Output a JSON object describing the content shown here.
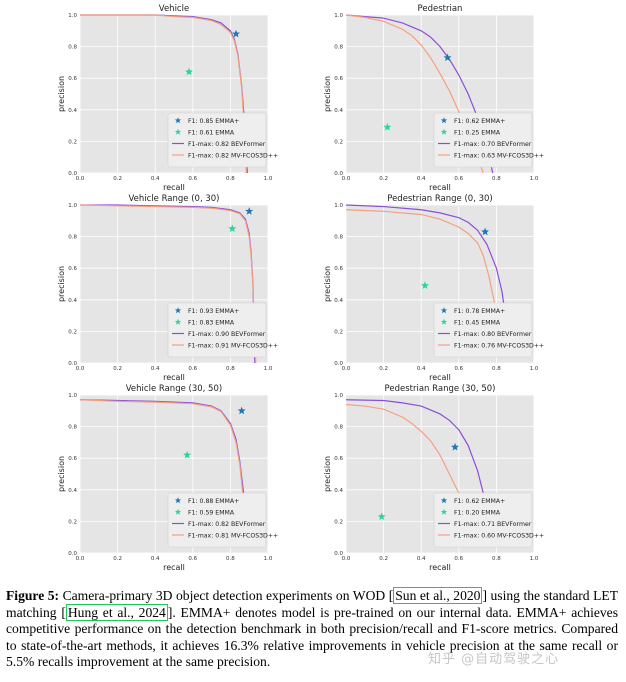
{
  "caption": {
    "fig_label": "Figure 5:",
    "seg1": " Camera-primary 3D object detection experiments on WOD [",
    "cite1": "Sun et al., 2020",
    "seg2": "] using the standard LET matching [",
    "cite2": "Hung et al., 2024",
    "seg3": "]. EMMA+ denotes model is pre-trained on our internal data. EMMA+ achieves competitive performance on the detection benchmark in both precision/recall and F1-score metrics. Compared to state-of-the-art methods, it achieves 16.3% relative improvements in vehicle precision at the same recall or 5.5% recalls improvement at the same precision."
  },
  "watermark": "知乎 @自动驾驶之心",
  "colors": {
    "panel_bg": "#e5e5e5",
    "grid": "#ffffff",
    "emma_plus": "#1f77b4",
    "emma": "#2ad3a0",
    "bevformer": "#8a4fd8",
    "mvfcos": "#f4a080"
  },
  "chart_data": [
    {
      "type": "line",
      "title": "Vehicle",
      "xlabel": "recall",
      "ylabel": "precision",
      "xlim": [
        0,
        1
      ],
      "ylim": [
        0,
        1
      ],
      "grid": true,
      "legend": "bottom-right",
      "xticks": [
        "0.0",
        "0.2",
        "0.4",
        "0.6",
        "0.8",
        "1.0"
      ],
      "yticks": [
        "0.0",
        "0.2",
        "0.4",
        "0.6",
        "0.8",
        "1.0"
      ],
      "points": [
        {
          "name": "F1: 0.85 EMMA+",
          "x": 0.83,
          "y": 0.88,
          "color": "emma_plus"
        },
        {
          "name": "F1: 0.61 EMMA",
          "x": 0.58,
          "y": 0.64,
          "color": "emma"
        }
      ],
      "series": [
        {
          "name": "F1-max: 0.82 BEVFormer",
          "color": "bevformer",
          "x": [
            0,
            0.2,
            0.4,
            0.5,
            0.6,
            0.7,
            0.75,
            0.8,
            0.82,
            0.84,
            0.86,
            0.88,
            0.89
          ],
          "y": [
            1,
            1,
            1,
            0.995,
            0.99,
            0.97,
            0.95,
            0.9,
            0.85,
            0.75,
            0.55,
            0.25,
            0
          ]
        },
        {
          "name": "F1-max: 0.82 MV-FCOS3D++",
          "color": "mvfcos",
          "x": [
            0,
            0.2,
            0.4,
            0.5,
            0.6,
            0.7,
            0.75,
            0.8,
            0.82,
            0.84,
            0.86,
            0.875,
            0.885
          ],
          "y": [
            1,
            1,
            1,
            0.99,
            0.985,
            0.965,
            0.94,
            0.89,
            0.84,
            0.74,
            0.54,
            0.25,
            0
          ]
        }
      ]
    },
    {
      "type": "line",
      "title": "Pedestrian",
      "xlabel": "recall",
      "ylabel": "precision",
      "xlim": [
        0,
        1
      ],
      "ylim": [
        0,
        1
      ],
      "grid": true,
      "legend": "bottom-right",
      "xticks": [
        "0.0",
        "0.2",
        "0.4",
        "0.6",
        "0.8",
        "1.0"
      ],
      "yticks": [
        "0.0",
        "0.2",
        "0.4",
        "0.6",
        "0.8",
        "1.0"
      ],
      "points": [
        {
          "name": "F1: 0.62 EMMA+",
          "x": 0.54,
          "y": 0.73,
          "color": "emma_plus"
        },
        {
          "name": "F1: 0.25 EMMA",
          "x": 0.22,
          "y": 0.29,
          "color": "emma"
        }
      ],
      "series": [
        {
          "name": "F1-max: 0.70 BEVFormer",
          "color": "bevformer",
          "x": [
            0,
            0.1,
            0.2,
            0.3,
            0.4,
            0.45,
            0.5,
            0.55,
            0.6,
            0.65,
            0.7,
            0.75,
            0.78
          ],
          "y": [
            1,
            0.99,
            0.98,
            0.95,
            0.9,
            0.86,
            0.8,
            0.72,
            0.62,
            0.5,
            0.35,
            0.18,
            0
          ]
        },
        {
          "name": "F1-max: 0.63 MV-FCOS3D++",
          "color": "mvfcos",
          "x": [
            0,
            0.1,
            0.2,
            0.3,
            0.35,
            0.4,
            0.45,
            0.5,
            0.55,
            0.6,
            0.65,
            0.7,
            0.73
          ],
          "y": [
            1,
            0.985,
            0.96,
            0.91,
            0.87,
            0.81,
            0.73,
            0.63,
            0.52,
            0.39,
            0.25,
            0.1,
            0
          ]
        }
      ]
    },
    {
      "type": "line",
      "title": "Vehicle Range (0, 30)",
      "xlabel": "recall",
      "ylabel": "precision",
      "xlim": [
        0,
        1
      ],
      "ylim": [
        0,
        1
      ],
      "grid": true,
      "legend": "bottom-right",
      "xticks": [
        "0.0",
        "0.2",
        "0.4",
        "0.6",
        "0.8",
        "1.0"
      ],
      "yticks": [
        "0.0",
        "0.2",
        "0.4",
        "0.6",
        "0.8",
        "1.0"
      ],
      "points": [
        {
          "name": "F1: 0.93 EMMA+",
          "x": 0.9,
          "y": 0.96,
          "color": "emma_plus"
        },
        {
          "name": "F1: 0.83 EMMA",
          "x": 0.81,
          "y": 0.85,
          "color": "emma"
        }
      ],
      "series": [
        {
          "name": "F1-max: 0.90 BEVFormer",
          "color": "bevformer",
          "x": [
            0,
            0.2,
            0.4,
            0.6,
            0.7,
            0.8,
            0.85,
            0.88,
            0.9,
            0.91,
            0.92,
            0.93
          ],
          "y": [
            1,
            1,
            0.995,
            0.99,
            0.985,
            0.97,
            0.95,
            0.91,
            0.82,
            0.7,
            0.5,
            0
          ]
        },
        {
          "name": "F1-max: 0.91 MV-FCOS3D++",
          "color": "mvfcos",
          "x": [
            0,
            0.2,
            0.4,
            0.6,
            0.7,
            0.8,
            0.85,
            0.88,
            0.9,
            0.91,
            0.92,
            0.935
          ],
          "y": [
            1,
            0.995,
            0.99,
            0.985,
            0.98,
            0.965,
            0.945,
            0.9,
            0.8,
            0.68,
            0.5,
            0
          ]
        }
      ]
    },
    {
      "type": "line",
      "title": "Pedestrian Range (0, 30)",
      "xlabel": "recall",
      "ylabel": "precision",
      "xlim": [
        0,
        1
      ],
      "ylim": [
        0,
        1
      ],
      "grid": true,
      "legend": "bottom-right",
      "xticks": [
        "0.0",
        "0.2",
        "0.4",
        "0.6",
        "0.8",
        "1.0"
      ],
      "yticks": [
        "0.0",
        "0.2",
        "0.4",
        "0.6",
        "0.8",
        "1.0"
      ],
      "points": [
        {
          "name": "F1: 0.78 EMMA+",
          "x": 0.74,
          "y": 0.83,
          "color": "emma_plus"
        },
        {
          "name": "F1: 0.45 EMMA",
          "x": 0.42,
          "y": 0.49,
          "color": "emma"
        }
      ],
      "series": [
        {
          "name": "F1-max: 0.80 BEVFormer",
          "color": "bevformer",
          "x": [
            0,
            0.2,
            0.4,
            0.5,
            0.6,
            0.65,
            0.7,
            0.75,
            0.8,
            0.83,
            0.86
          ],
          "y": [
            1,
            0.99,
            0.97,
            0.95,
            0.92,
            0.89,
            0.84,
            0.75,
            0.6,
            0.45,
            0.2
          ]
        },
        {
          "name": "F1-max: 0.76 MV-FCOS3D++",
          "color": "mvfcos",
          "x": [
            0,
            0.2,
            0.4,
            0.5,
            0.6,
            0.65,
            0.7,
            0.73,
            0.76,
            0.79,
            0.82
          ],
          "y": [
            0.97,
            0.96,
            0.94,
            0.91,
            0.86,
            0.82,
            0.76,
            0.68,
            0.55,
            0.38,
            0.2
          ]
        }
      ]
    },
    {
      "type": "line",
      "title": "Vehicle Range (30, 50)",
      "xlabel": "recall",
      "ylabel": "precision",
      "xlim": [
        0,
        1
      ],
      "ylim": [
        0,
        1
      ],
      "grid": true,
      "legend": "bottom-right",
      "xticks": [
        "0.0",
        "0.2",
        "0.4",
        "0.6",
        "0.8",
        "1.0"
      ],
      "yticks": [
        "0.0",
        "0.2",
        "0.4",
        "0.6",
        "0.8",
        "1.0"
      ],
      "points": [
        {
          "name": "F1: 0.88 EMMA+",
          "x": 0.86,
          "y": 0.9,
          "color": "emma_plus"
        },
        {
          "name": "F1: 0.59 EMMA",
          "x": 0.57,
          "y": 0.62,
          "color": "emma"
        }
      ],
      "series": [
        {
          "name": "F1-max: 0.82 BEVFormer",
          "color": "bevformer",
          "x": [
            0,
            0.2,
            0.4,
            0.6,
            0.7,
            0.75,
            0.8,
            0.83,
            0.85,
            0.87,
            0.88
          ],
          "y": [
            0.97,
            0.965,
            0.96,
            0.95,
            0.93,
            0.9,
            0.82,
            0.72,
            0.58,
            0.38,
            0.25
          ]
        },
        {
          "name": "F1-max: 0.81 MV-FCOS3D++",
          "color": "mvfcos",
          "x": [
            0,
            0.2,
            0.4,
            0.6,
            0.7,
            0.75,
            0.8,
            0.83,
            0.85,
            0.865,
            0.875
          ],
          "y": [
            0.97,
            0.96,
            0.955,
            0.945,
            0.925,
            0.895,
            0.81,
            0.7,
            0.56,
            0.38,
            0.25
          ]
        }
      ]
    },
    {
      "type": "line",
      "title": "Pedestrian Range (30, 50)",
      "xlabel": "recall",
      "ylabel": "precision",
      "xlim": [
        0,
        1
      ],
      "ylim": [
        0,
        1
      ],
      "grid": true,
      "legend": "bottom-right",
      "xticks": [
        "0.0",
        "0.2",
        "0.4",
        "0.6",
        "0.8",
        "1.0"
      ],
      "yticks": [
        "0.0",
        "0.2",
        "0.4",
        "0.6",
        "0.8",
        "1.0"
      ],
      "points": [
        {
          "name": "F1: 0.62 EMMA+",
          "x": 0.58,
          "y": 0.67,
          "color": "emma_plus"
        },
        {
          "name": "F1: 0.20 EMMA",
          "x": 0.19,
          "y": 0.23,
          "color": "emma"
        }
      ],
      "series": [
        {
          "name": "F1-max: 0.71 BEVFormer",
          "color": "bevformer",
          "x": [
            0,
            0.2,
            0.3,
            0.4,
            0.5,
            0.55,
            0.6,
            0.65,
            0.7,
            0.73,
            0.76
          ],
          "y": [
            0.97,
            0.965,
            0.95,
            0.93,
            0.88,
            0.84,
            0.78,
            0.68,
            0.52,
            0.38,
            0.2
          ]
        },
        {
          "name": "F1-max: 0.60 MV-FCOS3D++",
          "color": "mvfcos",
          "x": [
            0,
            0.1,
            0.2,
            0.3,
            0.35,
            0.4,
            0.45,
            0.5,
            0.55,
            0.6,
            0.65,
            0.7
          ],
          "y": [
            0.94,
            0.93,
            0.91,
            0.86,
            0.82,
            0.77,
            0.71,
            0.62,
            0.5,
            0.38,
            0.28,
            0.2
          ]
        }
      ]
    }
  ]
}
